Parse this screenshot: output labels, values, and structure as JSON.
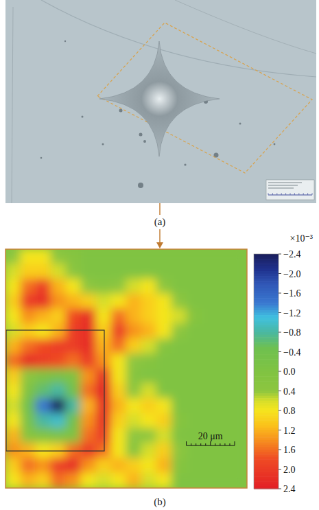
{
  "panels": {
    "a": "(a)",
    "b": "(b)"
  },
  "chart_data": {
    "type": "heatmap",
    "cells": [
      [
        0.4,
        0.8,
        0.8,
        0.4,
        0.2,
        0,
        0,
        0,
        0,
        0,
        0,
        0,
        0,
        0,
        0,
        0
      ],
      [
        0.6,
        1.0,
        1.0,
        0.6,
        0.3,
        0,
        0,
        0,
        0,
        0,
        0,
        0,
        0,
        0,
        0,
        0
      ],
      [
        0.8,
        1.6,
        2.0,
        1.2,
        0.8,
        0.4,
        0.2,
        0.4,
        0.6,
        0.8,
        0.4,
        0,
        0,
        0,
        0,
        0
      ],
      [
        1.0,
        2.0,
        2.2,
        1.4,
        1.2,
        1.0,
        0.6,
        0.8,
        1.2,
        1.0,
        0.8,
        0.4,
        0,
        0,
        0,
        0
      ],
      [
        0.8,
        1.4,
        1.2,
        1.0,
        1.8,
        2.2,
        0.8,
        1.6,
        1.2,
        1.0,
        0.8,
        0.6,
        0.2,
        0,
        0,
        0
      ],
      [
        0.6,
        1.0,
        0.8,
        1.2,
        2.0,
        2.2,
        1.0,
        2.0,
        1.4,
        1.2,
        0.8,
        0.4,
        0,
        0,
        0,
        0
      ],
      [
        1.2,
        1.6,
        1.8,
        2.0,
        2.0,
        2.2,
        1.2,
        1.6,
        1.0,
        0.6,
        0.2,
        0,
        0,
        0,
        0,
        0
      ],
      [
        1.6,
        2.2,
        2.0,
        1.8,
        1.6,
        2.0,
        1.4,
        0.8,
        0.4,
        0.2,
        0,
        0,
        0,
        0,
        0,
        0
      ],
      [
        1.0,
        0.4,
        0,
        -0.2,
        0,
        1.4,
        2.2,
        0.8,
        0.2,
        0,
        0,
        0,
        0,
        0,
        0,
        0
      ],
      [
        0.8,
        0,
        -0.6,
        -0.8,
        -0.4,
        1.6,
        2.4,
        1.0,
        0.4,
        0.6,
        0,
        0,
        0,
        0,
        0,
        0
      ],
      [
        0.6,
        -0.4,
        -1.4,
        -2.4,
        -0.8,
        1.2,
        2.2,
        1.2,
        0.8,
        1.0,
        0.8,
        0,
        0,
        0,
        0,
        0
      ],
      [
        0.8,
        -0.2,
        -0.8,
        -1.0,
        -0.4,
        1.4,
        2.2,
        1.0,
        0.6,
        0.8,
        1.0,
        0.2,
        0,
        0,
        0,
        0
      ],
      [
        1.2,
        0.2,
        0,
        -0.2,
        0,
        1.6,
        2.0,
        0.8,
        0.4,
        0.4,
        0.6,
        0,
        0,
        0,
        0,
        0
      ],
      [
        1.4,
        1.2,
        0.8,
        1.0,
        1.6,
        2.0,
        1.6,
        0.8,
        0.2,
        0.6,
        1.0,
        0.4,
        0,
        0,
        0,
        0
      ],
      [
        1.0,
        1.6,
        1.4,
        2.0,
        2.2,
        1.4,
        1.0,
        1.2,
        1.0,
        0.8,
        1.2,
        0.2,
        0,
        0,
        0,
        0
      ],
      [
        0.8,
        1.2,
        1.0,
        1.6,
        1.4,
        0.8,
        0.6,
        0.8,
        1.2,
        0.6,
        0.8,
        0,
        0,
        0,
        0,
        0
      ]
    ],
    "xlim": [
      0,
      100
    ],
    "color_range": [
      -2.4,
      2.4
    ],
    "color_ticks": [
      {
        "value": -2.4,
        "label": "−2.4"
      },
      {
        "value": -2.0,
        "label": "−2.0"
      },
      {
        "value": -1.6,
        "label": "−1.6"
      },
      {
        "value": -1.2,
        "label": "−1.2"
      },
      {
        "value": -0.8,
        "label": "−0.8"
      },
      {
        "value": -0.4,
        "label": "−0.4"
      },
      {
        "value": 0,
        "label": "0.0"
      },
      0.4,
      0.8,
      1.2,
      1.6,
      {
        "value": 2.0,
        "label": "2.0"
      },
      2.4
    ],
    "color_multiplier": "×10⁻³",
    "scale_bar": {
      "value": 20,
      "label": "20 μm"
    }
  }
}
